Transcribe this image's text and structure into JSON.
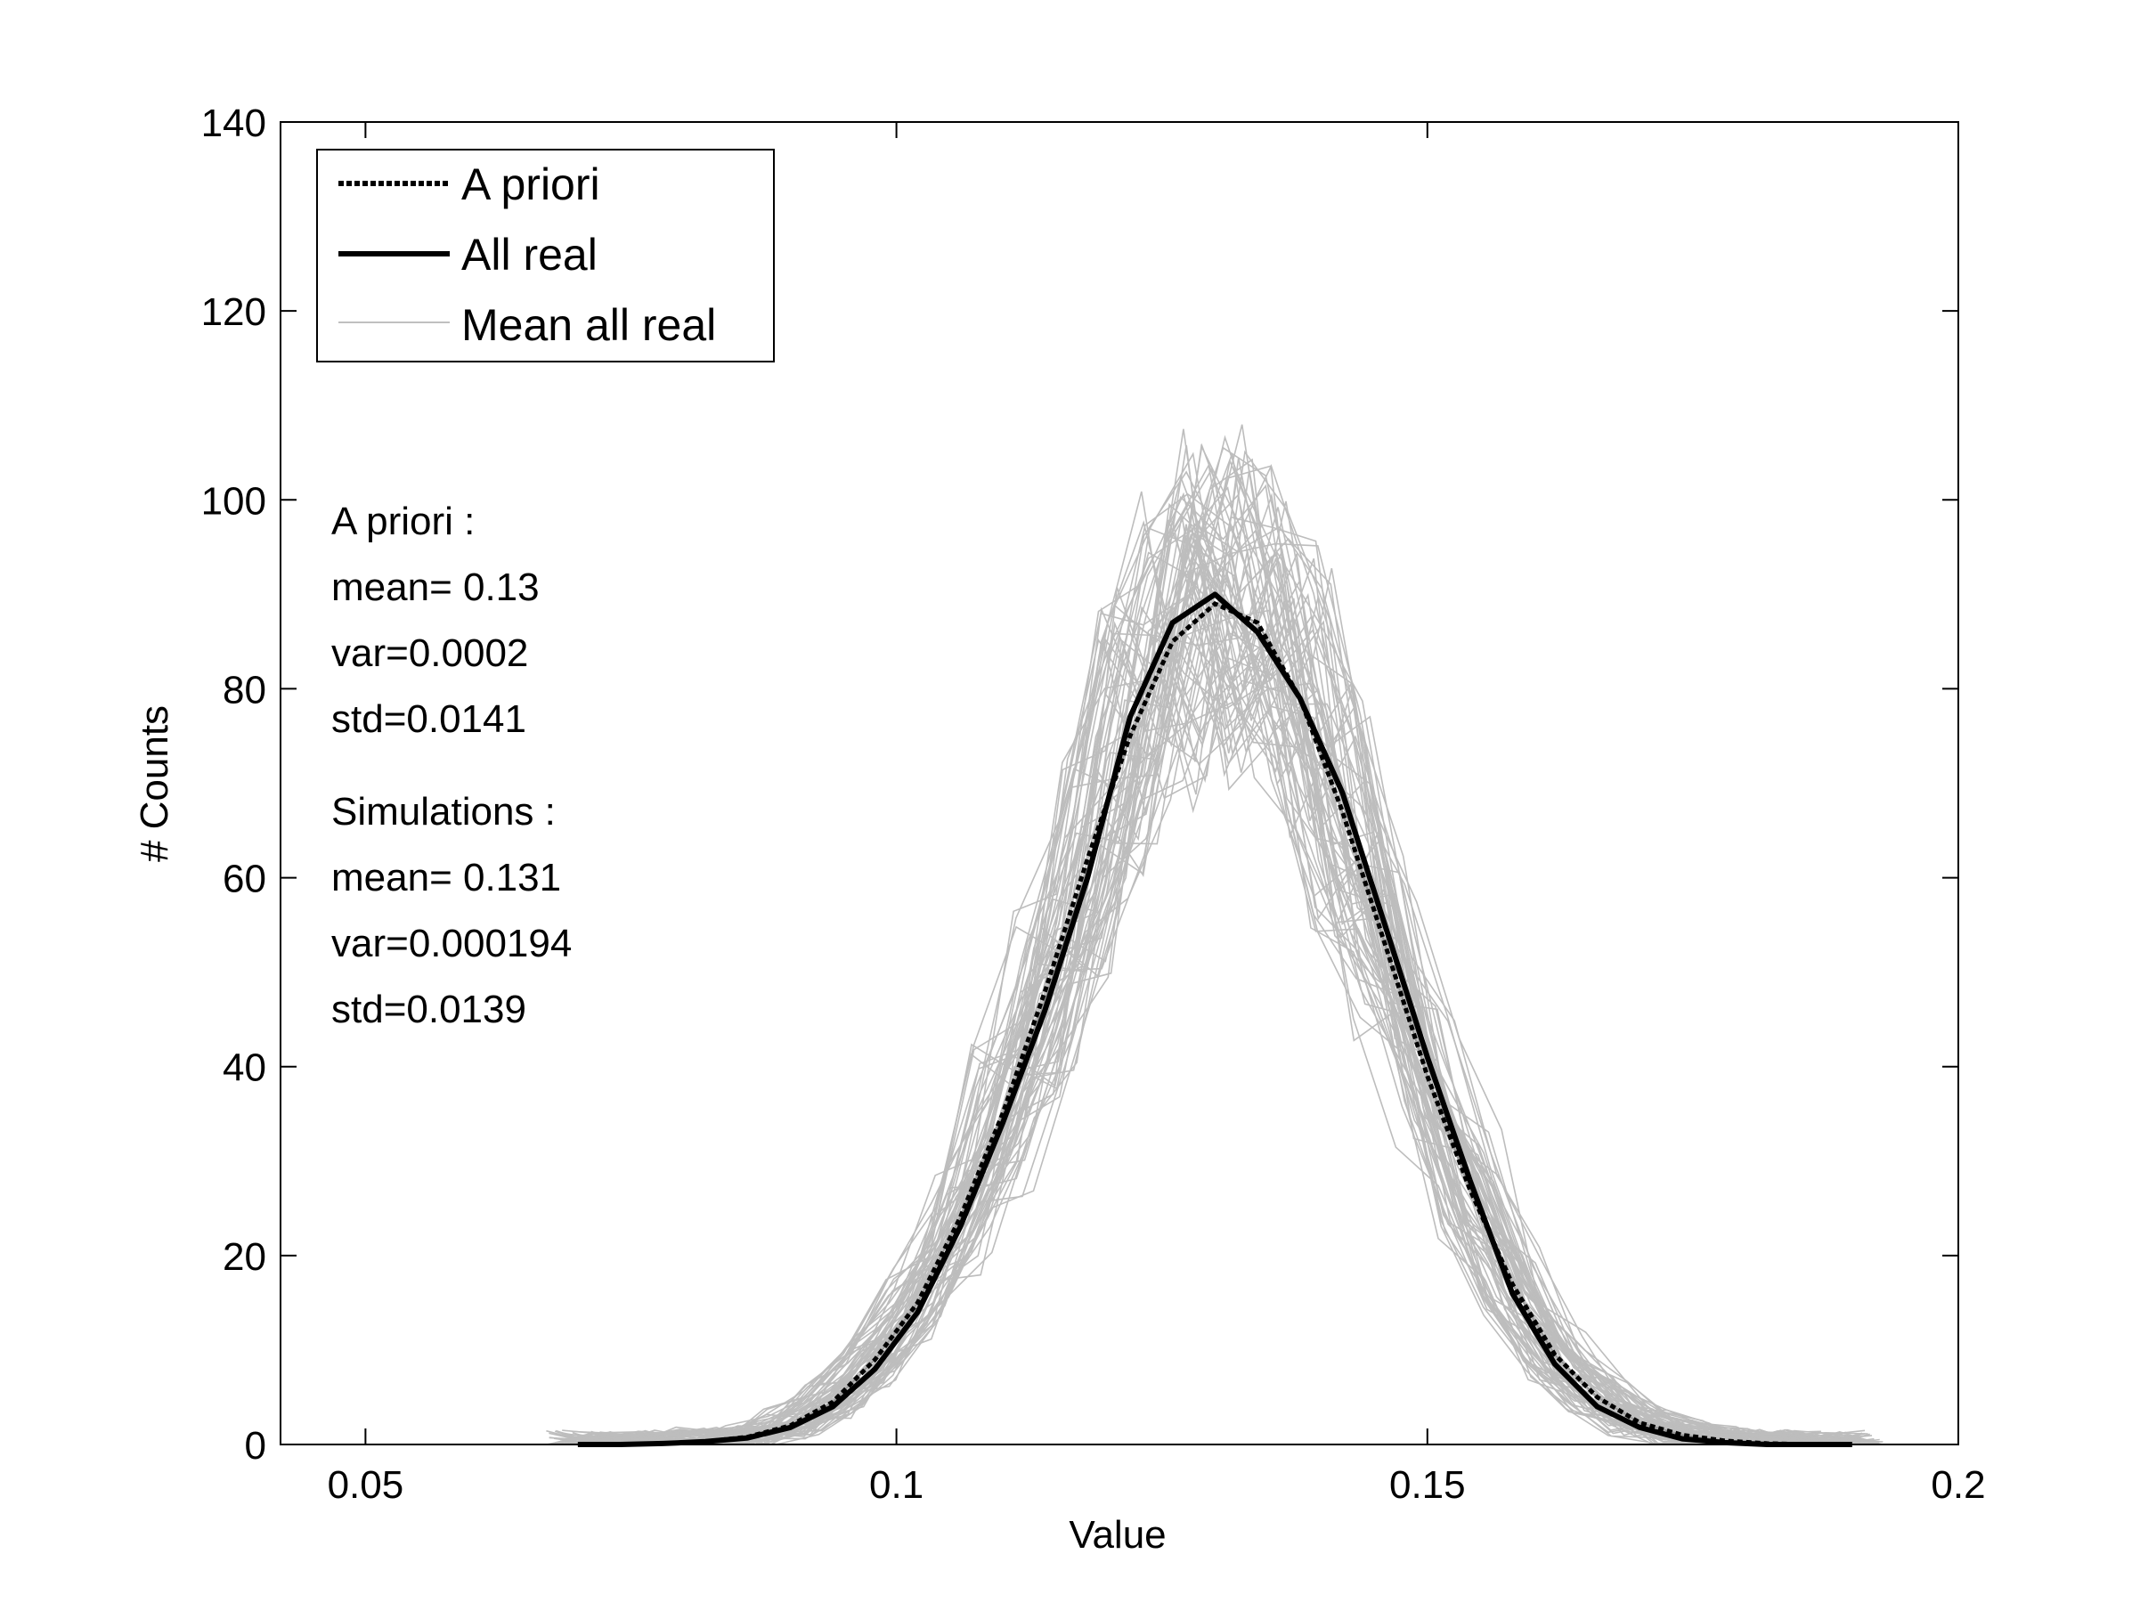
{
  "chart_data": {
    "type": "line",
    "xlabel": "Value",
    "ylabel": "# Counts",
    "xlim": [
      0.042,
      0.2
    ],
    "ylim": [
      0,
      140
    ],
    "xticks": [
      0.05,
      0.1,
      0.15,
      0.2
    ],
    "xtick_labels": [
      "0.05",
      "0.1",
      "0.15",
      "0.2"
    ],
    "yticks": [
      0,
      20,
      40,
      60,
      80,
      100,
      120,
      140
    ],
    "ytick_labels": [
      "0",
      "20",
      "40",
      "60",
      "80",
      "100",
      "120",
      "140"
    ],
    "grid": false,
    "legend_position": "top-left",
    "colors": {
      "a_priori": "#000000",
      "all_real": "#000000",
      "mean_all_real": "#b4b4b4"
    },
    "x": [
      0.07,
      0.074,
      0.078,
      0.082,
      0.086,
      0.09,
      0.094,
      0.098,
      0.102,
      0.106,
      0.11,
      0.114,
      0.118,
      0.122,
      0.126,
      0.13,
      0.134,
      0.138,
      0.142,
      0.146,
      0.15,
      0.154,
      0.158,
      0.162,
      0.166,
      0.17,
      0.174,
      0.178,
      0.182,
      0.186,
      0.19
    ],
    "series": [
      {
        "name": "A priori",
        "style": "dotted",
        "values": [
          0,
          0,
          0.1,
          0.3,
          0.8,
          2,
          4.5,
          9,
          15,
          24,
          35,
          48,
          62,
          75,
          85,
          89,
          87,
          79,
          67,
          53,
          39,
          27,
          17,
          9.5,
          5,
          2.3,
          1,
          0.4,
          0.1,
          0,
          0
        ]
      },
      {
        "name": "All real",
        "style": "solid",
        "values": [
          0,
          0,
          0.1,
          0.3,
          0.7,
          1.8,
          4,
          8,
          14,
          23,
          34,
          46,
          60,
          77,
          87,
          90,
          86,
          79,
          69,
          55,
          41,
          28,
          16,
          8.5,
          4,
          1.8,
          0.6,
          0.2,
          0,
          0,
          0
        ]
      },
      {
        "name": "Mean all real",
        "style": "thin",
        "values": [
          0,
          0,
          0.1,
          0.3,
          0.8,
          2,
          4.5,
          9,
          15,
          24,
          35,
          47,
          61,
          75,
          85,
          89,
          87,
          79,
          67,
          53,
          39,
          27,
          17,
          9.5,
          5,
          2.3,
          1,
          0.4,
          0.1,
          0,
          0
        ]
      }
    ],
    "annotation_lines": [
      "A priori :",
      "mean=  0.13",
      "var=0.0002",
      "std=0.0141",
      "Simulations :",
      "mean= 0.131",
      "var=0.000194",
      "std=0.0139"
    ]
  }
}
